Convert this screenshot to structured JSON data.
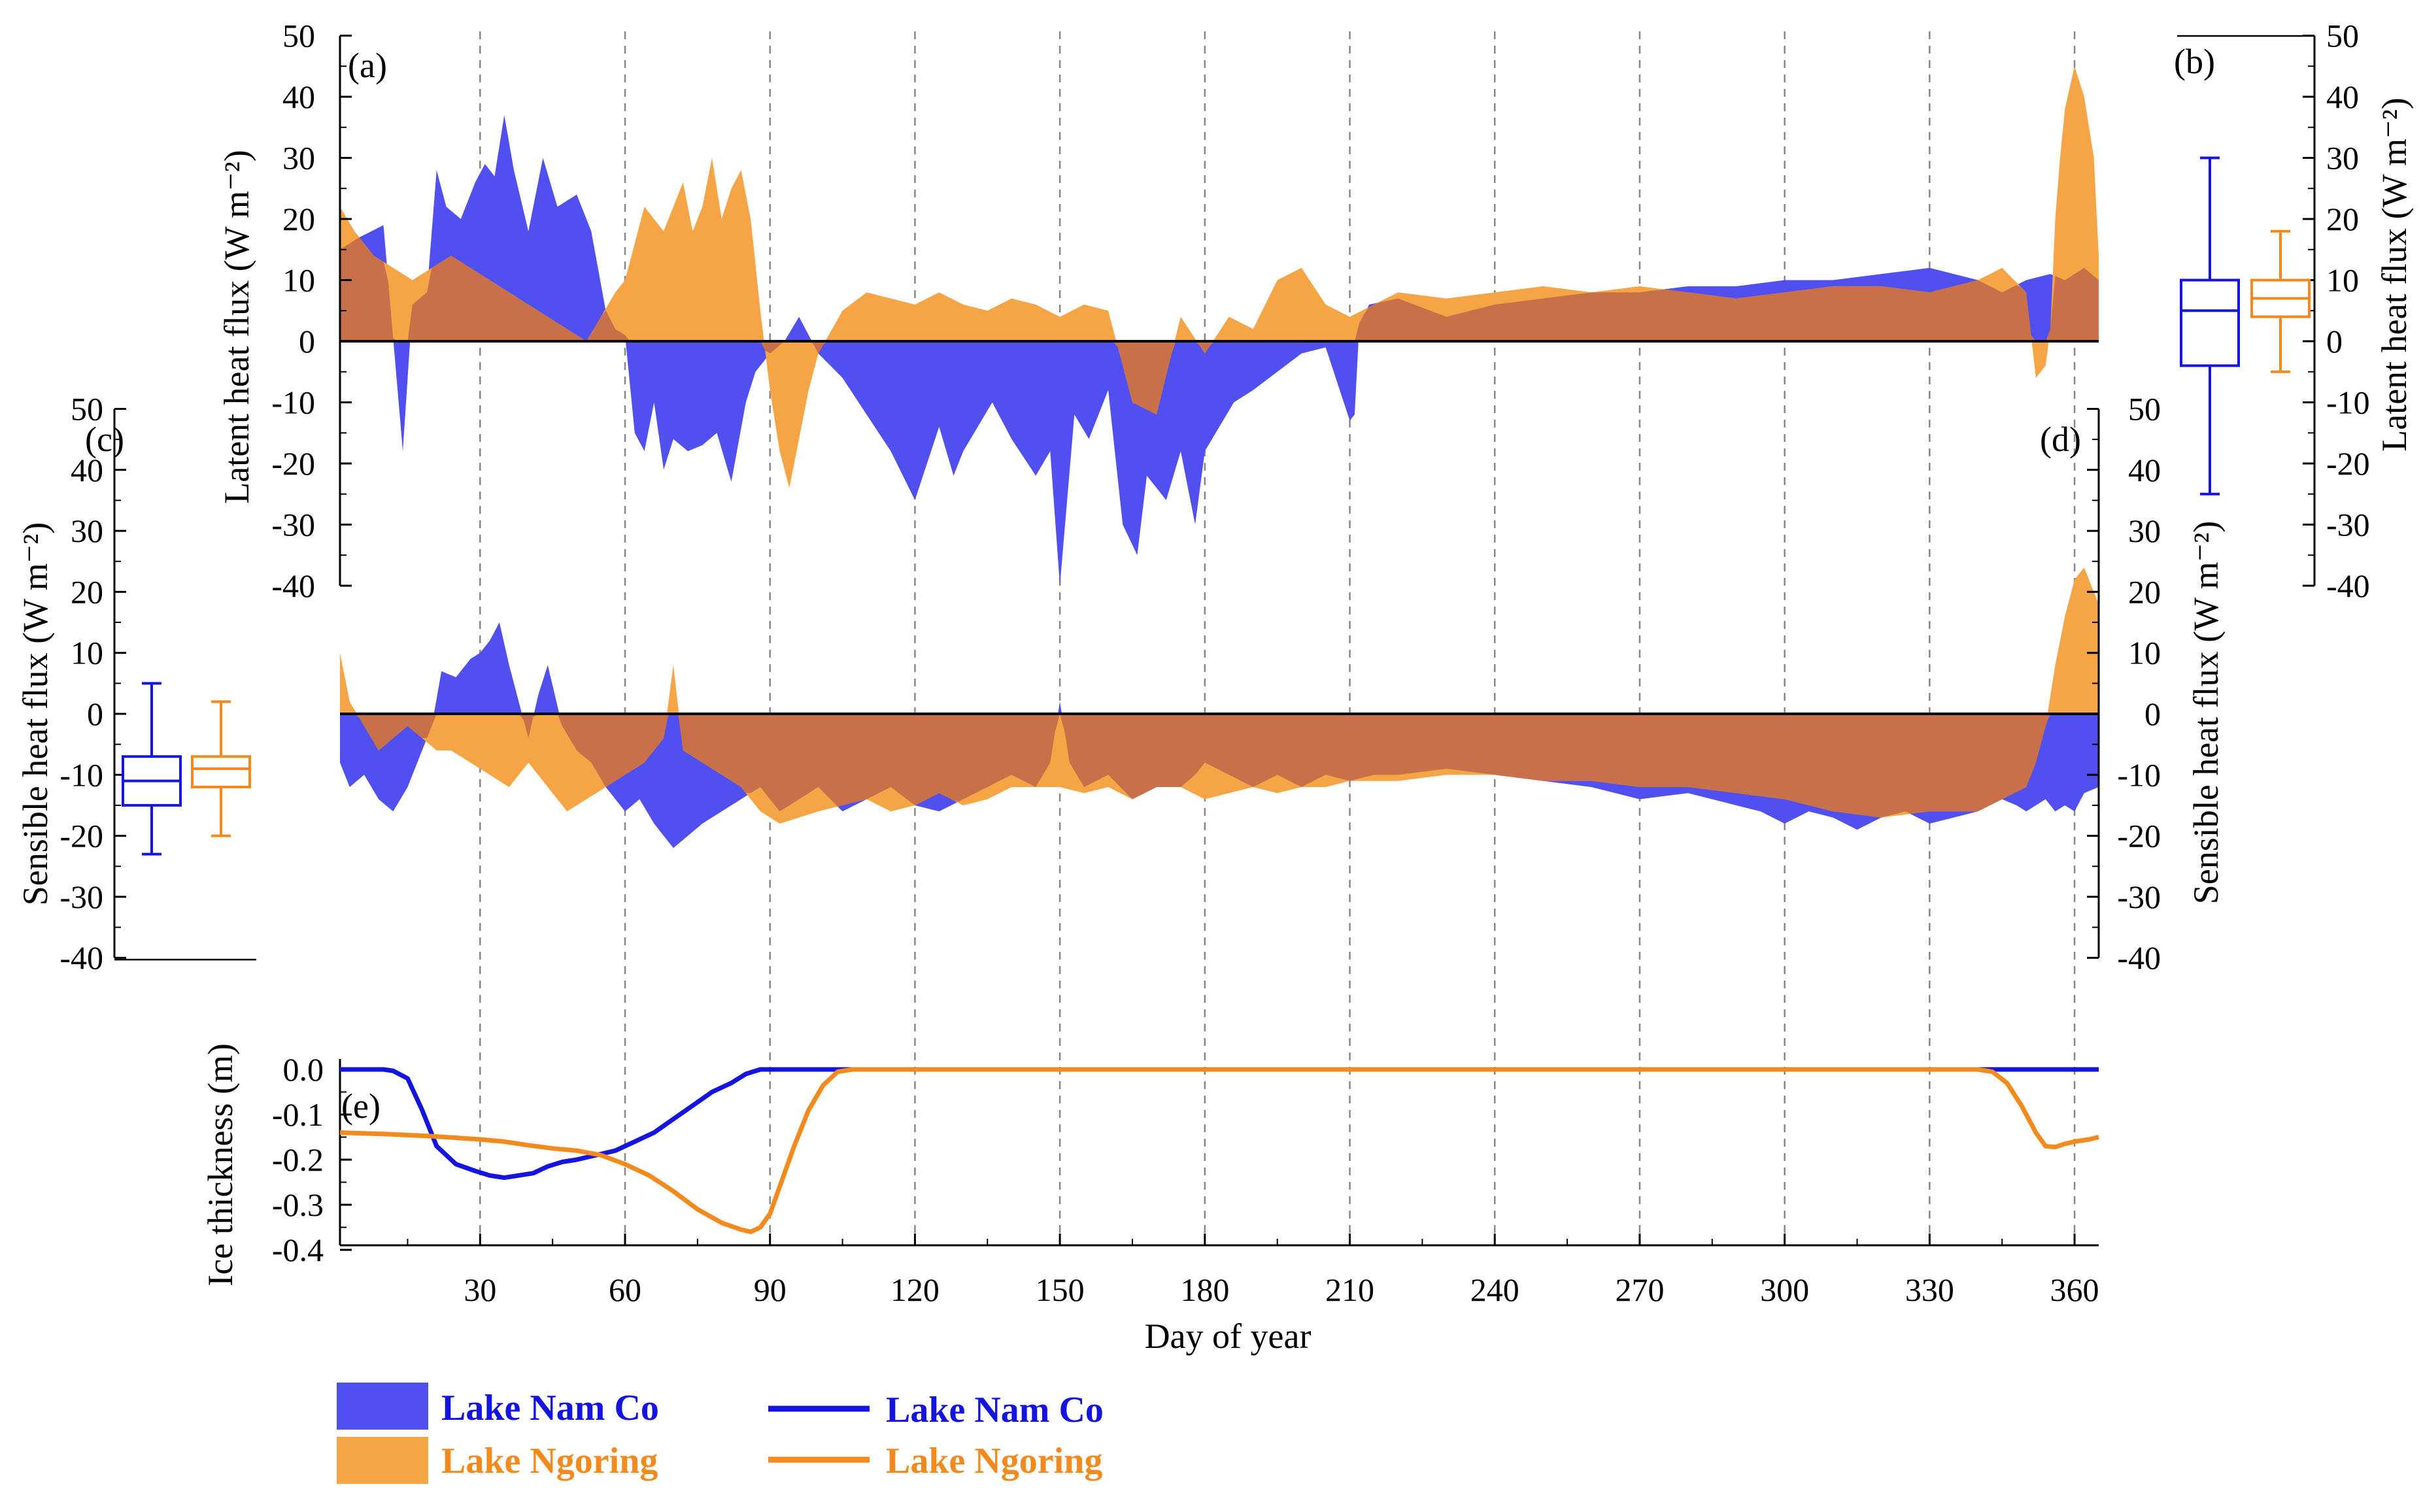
{
  "colors": {
    "nam_co_fill": "#5050F0",
    "ngoring_fill": "#F5A545",
    "overlap_fill": "#C8704A",
    "nam_co_line": "#1414E0",
    "ngoring_line": "#F28A1E"
  },
  "chart_data": [
    {
      "panel": "(a)",
      "type": "area",
      "ylabel": "Latent heat flux (W m⁻²)",
      "ylim": [
        -40,
        50
      ],
      "yticks": [
        50,
        40,
        30,
        20,
        10,
        0,
        -10,
        -20,
        -30,
        -40
      ],
      "xlim": [
        1,
        365
      ],
      "grid": "dashed vertical every 30 days",
      "series": [
        {
          "name": "Lake Nam Co",
          "x": [
            1,
            5,
            10,
            14,
            16,
            19,
            21,
            23,
            26,
            29,
            31,
            33,
            35,
            37,
            40,
            43,
            46,
            50,
            53,
            56,
            58,
            60,
            62,
            64,
            66,
            68,
            70,
            73,
            76,
            79,
            82,
            85,
            87,
            90,
            93,
            96,
            100,
            105,
            110,
            115,
            120,
            125,
            128,
            130,
            133,
            136,
            140,
            145,
            148,
            150,
            153,
            156,
            160,
            163,
            166,
            168,
            170,
            172,
            175,
            178,
            180,
            183,
            186,
            190,
            195,
            200,
            205,
            210,
            211,
            212,
            214,
            220,
            230,
            240,
            250,
            260,
            270,
            280,
            290,
            300,
            310,
            320,
            330,
            340,
            345,
            350,
            355,
            358,
            362,
            365
          ],
          "values": [
            15,
            17,
            19,
            -18,
            6,
            8,
            28,
            22,
            20,
            26,
            29,
            27,
            37,
            28,
            18,
            30,
            22,
            24,
            18,
            5,
            2,
            1,
            -15,
            -18,
            -10,
            -21,
            -16,
            -18,
            -17,
            -15,
            -23,
            -10,
            -5,
            -2,
            0,
            4,
            -2,
            -6,
            -12,
            -18,
            -26,
            -14,
            -22,
            -18,
            -14,
            -10,
            -16,
            -22,
            -18,
            -40,
            -12,
            -16,
            -8,
            -30,
            -35,
            -22,
            -24,
            -26,
            -18,
            -30,
            -18,
            -14,
            -10,
            -8,
            -5,
            -2,
            -1,
            -13,
            -12,
            3,
            6,
            7,
            4,
            6,
            7,
            8,
            8,
            9,
            9,
            10,
            10,
            11,
            12,
            10,
            8,
            10,
            11,
            10,
            12,
            10
          ]
        },
        {
          "name": "Lake Ngoring",
          "x": [
            1,
            4,
            8,
            12,
            16,
            20,
            24,
            28,
            32,
            36,
            40,
            44,
            48,
            52,
            55,
            58,
            60,
            62,
            64,
            66,
            68,
            70,
            72,
            74,
            76,
            78,
            80,
            82,
            84,
            86,
            88,
            90,
            92,
            94,
            96,
            98,
            100,
            105,
            110,
            115,
            120,
            125,
            130,
            135,
            140,
            145,
            150,
            155,
            160,
            165,
            170,
            175,
            180,
            185,
            190,
            195,
            200,
            205,
            210,
            215,
            220,
            230,
            240,
            250,
            260,
            270,
            280,
            290,
            300,
            310,
            320,
            330,
            340,
            345,
            350,
            352,
            354,
            355,
            356,
            357,
            358,
            360,
            362,
            364,
            365
          ],
          "values": [
            22,
            18,
            14,
            12,
            10,
            12,
            14,
            12,
            10,
            8,
            6,
            4,
            2,
            0,
            4,
            8,
            10,
            16,
            22,
            20,
            18,
            22,
            26,
            18,
            22,
            30,
            20,
            25,
            28,
            20,
            5,
            -8,
            -18,
            -24,
            -16,
            -8,
            -2,
            5,
            8,
            7,
            6,
            8,
            6,
            5,
            7,
            6,
            4,
            6,
            5,
            -10,
            -12,
            4,
            -2,
            4,
            2,
            10,
            12,
            6,
            4,
            6,
            8,
            7,
            8,
            9,
            8,
            9,
            8,
            7,
            8,
            9,
            9,
            8,
            10,
            12,
            8,
            -6,
            -4,
            2,
            20,
            30,
            38,
            45,
            40,
            30,
            14
          ]
        }
      ]
    },
    {
      "panel": "(b)",
      "type": "box",
      "ylabel": "Latent heat flux (W m⁻²)",
      "ylim": [
        -40,
        50
      ],
      "yticks": [
        50,
        40,
        30,
        20,
        10,
        0,
        -10,
        -20,
        -30,
        -40
      ],
      "boxes": [
        {
          "name": "Lake Nam Co",
          "whisker_low": -25,
          "q1": -4,
          "median": 5,
          "q3": 10,
          "whisker_high": 30
        },
        {
          "name": "Lake Ngoring",
          "whisker_low": -5,
          "q1": 4,
          "median": 7,
          "q3": 10,
          "whisker_high": 18
        }
      ]
    },
    {
      "panel": "(c)",
      "type": "box",
      "ylabel": "Sensible heat flux (W m⁻²)",
      "ylim": [
        -40,
        50
      ],
      "yticks": [
        50,
        40,
        30,
        20,
        10,
        0,
        -10,
        -20,
        -30,
        -40
      ],
      "boxes": [
        {
          "name": "Lake Nam Co",
          "whisker_low": -23,
          "q1": -15,
          "median": -11,
          "q3": -7,
          "whisker_high": 5
        },
        {
          "name": "Lake Ngoring",
          "whisker_low": -20,
          "q1": -12,
          "median": -9,
          "q3": -7,
          "whisker_high": 2
        }
      ]
    },
    {
      "panel": "(d)",
      "type": "area",
      "ylabel": "Sensible heat flux (W m⁻²)",
      "ylim": [
        -40,
        50
      ],
      "yticks": [
        50,
        40,
        30,
        20,
        10,
        0,
        -10,
        -20,
        -30,
        -40
      ],
      "xlim": [
        1,
        365
      ],
      "series": [
        {
          "name": "Lake Nam Co",
          "x": [
            1,
            3,
            6,
            9,
            12,
            15,
            18,
            20,
            22,
            25,
            28,
            30,
            32,
            34,
            36,
            38,
            40,
            42,
            44,
            47,
            50,
            53,
            56,
            60,
            63,
            66,
            68,
            70,
            73,
            76,
            80,
            84,
            88,
            92,
            96,
            100,
            105,
            110,
            115,
            120,
            125,
            130,
            135,
            140,
            145,
            148,
            150,
            152,
            155,
            160,
            165,
            170,
            175,
            178,
            180,
            185,
            190,
            195,
            200,
            205,
            210,
            215,
            220,
            230,
            240,
            250,
            260,
            270,
            280,
            290,
            295,
            300,
            305,
            310,
            315,
            320,
            325,
            330,
            335,
            340,
            345,
            348,
            350,
            352,
            354,
            356,
            358,
            360,
            362,
            365
          ],
          "values": [
            -8,
            -12,
            -10,
            -14,
            -16,
            -12,
            -6,
            -2,
            7,
            6,
            9,
            10,
            12,
            15,
            8,
            2,
            -4,
            3,
            8,
            -2,
            -6,
            -8,
            -12,
            -16,
            -14,
            -18,
            -20,
            -22,
            -20,
            -18,
            -16,
            -14,
            -12,
            -16,
            -14,
            -12,
            -16,
            -14,
            -12,
            -15,
            -16,
            -14,
            -12,
            -10,
            -12,
            -8,
            2,
            -8,
            -12,
            -10,
            -14,
            -12,
            -12,
            -10,
            -8,
            -10,
            -12,
            -10,
            -12,
            -10,
            -11,
            -10,
            -10,
            -9,
            -10,
            -11,
            -12,
            -14,
            -13,
            -15,
            -16,
            -18,
            -16,
            -17,
            -19,
            -17,
            -16,
            -18,
            -17,
            -16,
            -14,
            -15,
            -16,
            -15,
            -14,
            -16,
            -15,
            -16,
            -13,
            -12
          ]
        },
        {
          "name": "Lake Ngoring",
          "x": [
            1,
            3,
            6,
            9,
            12,
            15,
            18,
            21,
            24,
            28,
            32,
            36,
            40,
            44,
            48,
            52,
            56,
            60,
            64,
            68,
            70,
            72,
            76,
            80,
            84,
            88,
            92,
            96,
            100,
            105,
            110,
            115,
            120,
            125,
            130,
            135,
            140,
            145,
            150,
            155,
            160,
            165,
            170,
            175,
            180,
            185,
            190,
            195,
            200,
            205,
            210,
            220,
            230,
            240,
            250,
            260,
            270,
            280,
            290,
            300,
            310,
            320,
            330,
            340,
            345,
            350,
            352,
            354,
            356,
            358,
            360,
            362,
            364,
            365
          ],
          "values": [
            10,
            2,
            -2,
            -6,
            -4,
            -2,
            -4,
            -6,
            -6,
            -8,
            -10,
            -12,
            -8,
            -12,
            -16,
            -14,
            -12,
            -10,
            -8,
            -4,
            8,
            -6,
            -8,
            -10,
            -12,
            -16,
            -18,
            -17,
            -16,
            -15,
            -14,
            -16,
            -15,
            -13,
            -15,
            -14,
            -12,
            -12,
            -12,
            -13,
            -12,
            -14,
            -12,
            -12,
            -14,
            -13,
            -12,
            -13,
            -12,
            -12,
            -11,
            -11,
            -10,
            -10,
            -11,
            -11,
            -12,
            -12,
            -13,
            -14,
            -16,
            -17,
            -16,
            -16,
            -14,
            -12,
            -8,
            -2,
            8,
            16,
            22,
            24,
            20,
            18
          ]
        }
      ]
    },
    {
      "panel": "(e)",
      "type": "line",
      "xlabel": "Day of year",
      "ylabel": "Ice thickness (m)",
      "ylim": [
        -0.4,
        0.0
      ],
      "yticks": [
        "0.0",
        "-0.1",
        "-0.2",
        "-0.3",
        "-0.4"
      ],
      "xlim": [
        1,
        365
      ],
      "xticks": [
        "30",
        "60",
        "90",
        "120",
        "150",
        "180",
        "210",
        "240",
        "270",
        "300",
        "330",
        "360"
      ],
      "series": [
        {
          "name": "Lake Nam Co",
          "x": [
            1,
            5,
            10,
            12,
            15,
            18,
            21,
            25,
            29,
            32,
            35,
            38,
            41,
            44,
            47,
            50,
            54,
            58,
            62,
            66,
            70,
            74,
            78,
            82,
            85,
            88,
            90,
            100,
            344,
            348,
            352,
            356,
            360,
            365
          ],
          "values": [
            0,
            0,
            0,
            -0.003,
            -0.02,
            -0.09,
            -0.17,
            -0.21,
            -0.225,
            -0.235,
            -0.24,
            -0.235,
            -0.23,
            -0.215,
            -0.205,
            -0.2,
            -0.19,
            -0.18,
            -0.16,
            -0.14,
            -0.11,
            -0.08,
            -0.05,
            -0.03,
            -0.01,
            0,
            0,
            0,
            0,
            0,
            0,
            0,
            0,
            0
          ]
        },
        {
          "name": "Lake Ngoring",
          "x": [
            1,
            10,
            20,
            30,
            35,
            40,
            45,
            50,
            55,
            60,
            65,
            70,
            75,
            80,
            84,
            86,
            88,
            90,
            92,
            95,
            98,
            101,
            104,
            107,
            110,
            200,
            340,
            343,
            346,
            349,
            352,
            354,
            356,
            358,
            360,
            363,
            365
          ],
          "values": [
            -0.14,
            -0.143,
            -0.148,
            -0.155,
            -0.16,
            -0.168,
            -0.175,
            -0.18,
            -0.19,
            -0.21,
            -0.235,
            -0.27,
            -0.31,
            -0.34,
            -0.355,
            -0.36,
            -0.35,
            -0.32,
            -0.26,
            -0.17,
            -0.09,
            -0.035,
            -0.005,
            0,
            0,
            0,
            0,
            -0.005,
            -0.03,
            -0.08,
            -0.14,
            -0.17,
            -0.172,
            -0.165,
            -0.16,
            -0.155,
            -0.15
          ]
        }
      ]
    }
  ],
  "legend": {
    "fill": [
      {
        "label": "Lake Nam Co"
      },
      {
        "label": "Lake Ngoring"
      }
    ],
    "line": [
      {
        "label": "Lake Nam Co"
      },
      {
        "label": "Lake Ngoring"
      }
    ]
  }
}
